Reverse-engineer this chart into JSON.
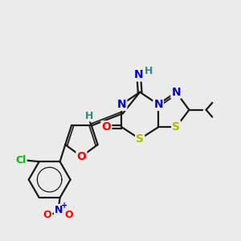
{
  "background_color": "#ebebeb",
  "atom_colors": {
    "C": "#000000",
    "H": "#2e8b8b",
    "N": "#0000cd",
    "O": "#ff0000",
    "S": "#b8b800",
    "Cl": "#00bb00"
  },
  "bond_color": "#1a1a1a",
  "bond_width": 1.6,
  "font_size": 10,
  "fig_width": 3.0,
  "fig_height": 3.0,
  "dpi": 100
}
